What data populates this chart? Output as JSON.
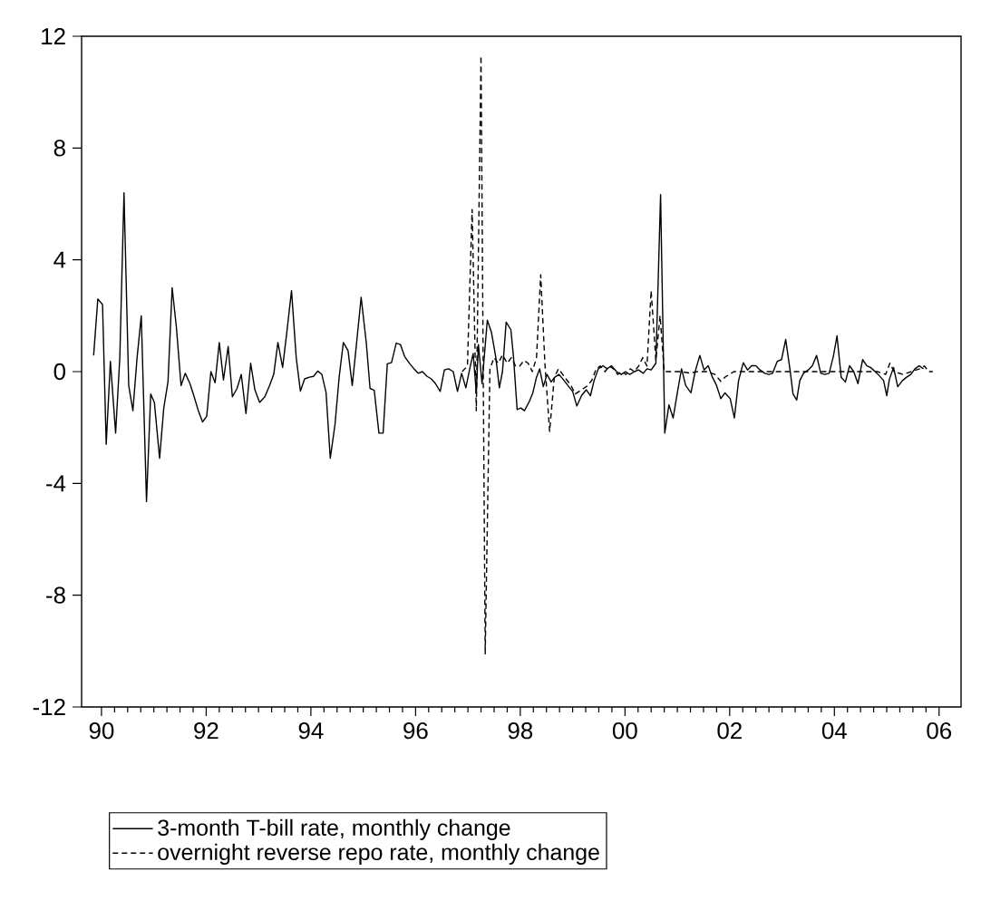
{
  "chart_data": {
    "type": "line",
    "xlim": [
      1989.62,
      2006.42
    ],
    "ylim": [
      -12,
      12
    ],
    "xticks": [
      {
        "value": 1990,
        "label": "90"
      },
      {
        "value": 1992,
        "label": "92"
      },
      {
        "value": 1994,
        "label": "94"
      },
      {
        "value": 1996,
        "label": "96"
      },
      {
        "value": 1998,
        "label": "98"
      },
      {
        "value": 2000,
        "label": "00"
      },
      {
        "value": 2002,
        "label": "02"
      },
      {
        "value": 2004,
        "label": "04"
      },
      {
        "value": 2006,
        "label": "06"
      }
    ],
    "yticks": [
      -12,
      -8,
      -4,
      0,
      4,
      8,
      12
    ],
    "grid": false,
    "legend": "bottom",
    "marker": "none",
    "series": [
      {
        "name": "3-month T-bill rate, monthly change",
        "color": "#000000",
        "line_style": "solid",
        "x": [
          1989.85,
          1989.93,
          1990.02,
          1990.09,
          1990.17,
          1990.27,
          1990.35,
          1990.43,
          1990.52,
          1990.6,
          1990.68,
          1990.76,
          1990.86,
          1990.94,
          1991.01,
          1991.11,
          1991.19,
          1991.27,
          1991.35,
          1991.43,
          1991.52,
          1991.6,
          1991.69,
          1991.77,
          1991.85,
          1991.93,
          1992.01,
          1992.09,
          1992.17,
          1992.25,
          1992.33,
          1992.42,
          1992.5,
          1992.59,
          1992.67,
          1992.76,
          1992.85,
          1992.93,
          1993.02,
          1993.12,
          1993.21,
          1993.29,
          1993.37,
          1993.46,
          1993.54,
          1993.63,
          1993.72,
          1993.8,
          1993.88,
          1993.97,
          1994.05,
          1994.13,
          1994.21,
          1994.29,
          1994.37,
          1994.46,
          1994.54,
          1994.62,
          1994.71,
          1994.79,
          1994.87,
          1994.96,
          1995.06,
          1995.13,
          1995.21,
          1995.3,
          1995.38,
          1995.46,
          1995.54,
          1995.63,
          1995.71,
          1995.79,
          1995.89,
          1995.97,
          1996.05,
          1996.13,
          1996.22,
          1996.3,
          1996.38,
          1996.47,
          1996.55,
          1996.63,
          1996.72,
          1996.8,
          1996.88,
          1996.96,
          1997.04,
          1997.1,
          1997.16,
          1997.2,
          1997.27,
          1997.37,
          1997.45,
          1997.53,
          1997.6,
          1997.66,
          1997.73,
          1997.82,
          1997.87,
          1997.94,
          1998.01,
          1998.08,
          1998.17,
          1998.24,
          1998.31,
          1998.37,
          1998.44,
          1998.51,
          1998.59,
          1998.66,
          1998.74,
          1998.82,
          1998.91,
          1999.0,
          1999.08,
          1999.17,
          1999.26,
          1999.34,
          1999.41,
          1999.49,
          1999.58,
          1999.66,
          1999.74,
          1999.84,
          1999.93,
          2000.01,
          2000.09,
          2000.18,
          2000.26,
          2000.35,
          2000.42,
          2000.5,
          2000.59,
          2000.68,
          2000.76,
          2000.84,
          2000.92,
          2001.0,
          2001.08,
          2001.16,
          2001.26,
          2001.34,
          2001.43,
          2001.51,
          2001.59,
          2001.67,
          2001.75,
          2001.83,
          2001.91,
          2002.01,
          2002.09,
          2002.17,
          2002.26,
          2002.34,
          2002.42,
          2002.5,
          2002.58,
          2002.67,
          2002.75,
          2002.82,
          2002.91,
          2002.99,
          2003.07,
          2003.15,
          2003.21,
          2003.28,
          2003.34,
          2003.41,
          2003.5,
          2003.58,
          2003.66,
          2003.74,
          2003.82,
          2003.9,
          2003.98,
          2004.05,
          2004.13,
          2004.21,
          2004.29,
          2004.37,
          2004.45,
          2004.54,
          2004.62,
          2004.69,
          2004.78,
          2004.86,
          2004.94,
          2005.0,
          2005.05,
          2005.13,
          2005.21,
          2005.3,
          2005.38,
          2005.46,
          2005.54,
          2005.62,
          2005.7
        ],
        "values": [
          0.58,
          2.6,
          2.4,
          -2.6,
          0.37,
          -2.2,
          0.5,
          6.4,
          -0.5,
          -1.4,
          0.5,
          2.0,
          -4.65,
          -0.8,
          -1.1,
          -3.1,
          -1.3,
          -0.37,
          3.0,
          1.6,
          -0.5,
          -0.06,
          -0.43,
          -0.9,
          -1.4,
          -1.8,
          -1.6,
          0,
          -0.4,
          1.04,
          -0.3,
          0.9,
          -0.9,
          -0.6,
          -0.1,
          -1.5,
          0.3,
          -0.65,
          -1.1,
          -0.9,
          -0.5,
          -0.1,
          1.04,
          0.15,
          1.4,
          2.9,
          0.5,
          -0.7,
          -0.26,
          -0.2,
          -0.17,
          0.02,
          -0.1,
          -0.75,
          -3.1,
          -1.9,
          -0.2,
          1.04,
          0.75,
          -0.5,
          0.97,
          2.66,
          1.0,
          -0.6,
          -0.67,
          -2.2,
          -2.2,
          0.28,
          0.32,
          1.02,
          0.97,
          0.54,
          0.28,
          0.1,
          -0.06,
          0,
          -0.17,
          -0.26,
          -0.43,
          -0.71,
          0.06,
          0.1,
          0,
          -0.71,
          -0.06,
          -0.58,
          0.15,
          0.65,
          -0.76,
          0.97,
          -0.43,
          1.84,
          1.4,
          0.54,
          -0.58,
          0,
          1.77,
          1.5,
          0.54,
          -1.36,
          -1.3,
          -1.4,
          -1.08,
          -0.76,
          -0.2,
          0.1,
          -0.54,
          -0.1,
          -0.37,
          -0.2,
          -0.1,
          -0.28,
          -0.5,
          -0.71,
          -1.23,
          -0.86,
          -0.65,
          -0.86,
          -0.32,
          0.1,
          0.21,
          0.1,
          0.21,
          0,
          -0.1,
          0,
          -0.1,
          0,
          0.06,
          -0.06,
          0.1,
          0.06,
          0.3,
          6.33,
          -2.2,
          -1.19,
          -1.66,
          -0.76,
          0.1,
          -0.5,
          -0.76,
          0,
          0.58,
          0.06,
          0.21,
          -0.2,
          -0.5,
          -0.97,
          -0.76,
          -0.97,
          -1.66,
          -0.32,
          0.32,
          0.06,
          0.21,
          0.21,
          0.06,
          -0.06,
          -0.1,
          -0.06,
          0.37,
          0.43,
          1.15,
          0.1,
          -0.8,
          -1.02,
          -0.32,
          -0.06,
          0.06,
          0.21,
          0.58,
          -0.06,
          -0.1,
          -0.06,
          0.54,
          1.28,
          -0.2,
          -0.37,
          0.21,
          0,
          -0.43,
          0.43,
          0.21,
          0.15,
          0,
          -0.15,
          -0.32,
          -0.86,
          -0.28,
          0.15,
          -0.54,
          -0.32,
          -0.2,
          -0.1,
          0.1,
          0.21,
          0.1
        ]
      },
      {
        "name": "overnight reverse repo rate, monthly change",
        "color": "#000000",
        "line_style": "dashed",
        "x": [
          1996.89,
          1996.99,
          1997.08,
          1997.16,
          1997.25,
          1997.33,
          1997.42,
          1997.5,
          1997.58,
          1997.66,
          1997.75,
          1997.83,
          1997.91,
          1997.99,
          1998.07,
          1998.15,
          1998.23,
          1998.31,
          1998.39,
          1998.47,
          1998.56,
          1998.65,
          1998.73,
          1998.81,
          1998.89,
          1998.97,
          1999.05,
          1999.13,
          1999.21,
          1999.29,
          1999.37,
          1999.45,
          1999.53,
          1999.62,
          1999.7,
          1999.78,
          1999.86,
          1999.94,
          2000.02,
          2000.1,
          2000.18,
          2000.26,
          2000.34,
          2000.42,
          2000.5,
          2000.59,
          2000.67,
          2000.75,
          2000.91,
          2001.07,
          2001.23,
          2001.39,
          2001.56,
          2001.72,
          2001.83,
          2001.91,
          2002.08,
          2002.24,
          2002.4,
          2002.56,
          2002.72,
          2002.88,
          2003.05,
          2003.21,
          2003.37,
          2003.53,
          2003.69,
          2003.85,
          2004.02,
          2004.17,
          2004.34,
          2004.5,
          2004.66,
          2004.82,
          2004.98,
          2005.06,
          2005.14,
          2005.31,
          2005.47,
          2005.63,
          2005.72,
          2005.8,
          2005.88
        ],
        "values": [
          0,
          0.2,
          5.8,
          -1.4,
          11.3,
          -10.1,
          0.1,
          0.5,
          0.3,
          0.6,
          0.3,
          0.5,
          0.2,
          0.2,
          0.4,
          0.3,
          0.0,
          0.5,
          3.46,
          0.3,
          -2.14,
          -0.2,
          0.1,
          -0.1,
          -0.3,
          -0.5,
          -0.8,
          -0.7,
          -0.6,
          -0.5,
          -0.3,
          0.1,
          0.2,
          0.0,
          0.2,
          0.1,
          -0.1,
          0.0,
          -0.1,
          0.1,
          0.0,
          0.2,
          0.5,
          0.2,
          2.9,
          0.4,
          2.0,
          0.0,
          0.0,
          0.0,
          -0.05,
          0.0,
          0.0,
          -0.1,
          -0.35,
          -0.2,
          0,
          0,
          0,
          0,
          0,
          0,
          0,
          0,
          0,
          0,
          0,
          0,
          0,
          0,
          0,
          0,
          0,
          0,
          -0.1,
          0.3,
          0,
          -0.1,
          0,
          0.1,
          0.2,
          0,
          0
        ]
      }
    ]
  }
}
